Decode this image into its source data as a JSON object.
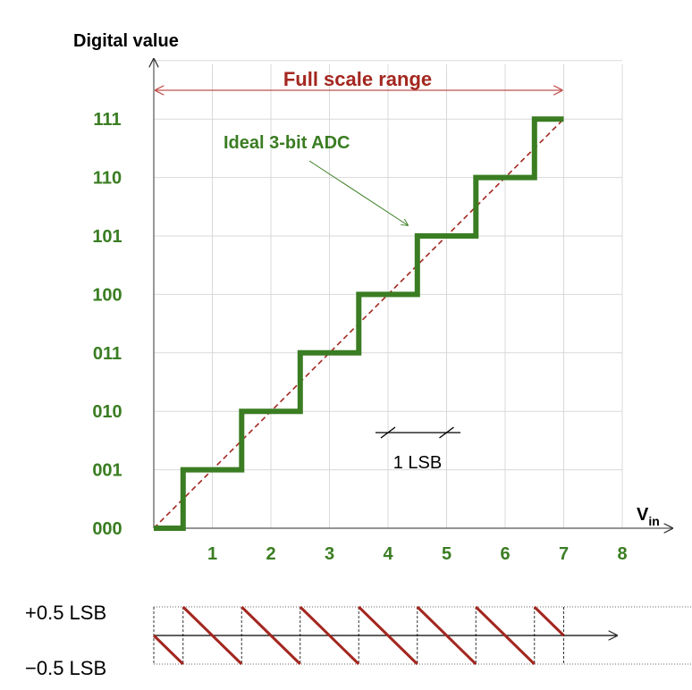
{
  "axis": {
    "y_title": "Digital value",
    "x_title_main": "V",
    "x_title_sub": "in",
    "x_ticks": [
      "1",
      "2",
      "3",
      "4",
      "5",
      "6",
      "7",
      "8"
    ],
    "y_ticks": [
      "000",
      "001",
      "010",
      "011",
      "100",
      "101",
      "110",
      "111"
    ]
  },
  "annotations": {
    "full_scale": "Full scale range",
    "ideal": "Ideal 3-bit ADC",
    "lsb": "1 LSB"
  },
  "error_plot": {
    "upper_label": "+0.5 LSB",
    "lower_label": "−0.5 LSB"
  },
  "colors": {
    "staircase": "#3a7d22",
    "ideal_line": "#a3271f",
    "grid": "#d9d9d9",
    "error_line": "#a3271f"
  },
  "chart_data": {
    "type": "line",
    "x_range": [
      0,
      8
    ],
    "y_range": [
      0,
      7
    ],
    "series": [
      {
        "name": "Ideal 3-bit ADC",
        "x": [
          0,
          0.5,
          0.5,
          1.5,
          1.5,
          2.5,
          2.5,
          3.5,
          3.5,
          4.5,
          4.5,
          5.5,
          5.5,
          6.5,
          6.5,
          7
        ],
        "y": [
          0,
          0,
          1,
          1,
          2,
          2,
          3,
          3,
          4,
          4,
          5,
          5,
          6,
          6,
          7,
          7
        ]
      }
    ],
    "reference_line": {
      "x": [
        0,
        7
      ],
      "y": [
        0,
        7
      ]
    },
    "quantization_error": {
      "x": [
        0,
        0.5,
        0.5,
        1.5,
        1.5,
        2.5,
        2.5,
        3.5,
        3.5,
        4.5,
        4.5,
        5.5,
        5.5,
        6.5,
        6.5,
        7
      ],
      "y": [
        0,
        -0.5,
        0.5,
        -0.5,
        0.5,
        -0.5,
        0.5,
        -0.5,
        0.5,
        -0.5,
        0.5,
        -0.5,
        0.5,
        -0.5,
        0.5,
        0
      ]
    }
  }
}
